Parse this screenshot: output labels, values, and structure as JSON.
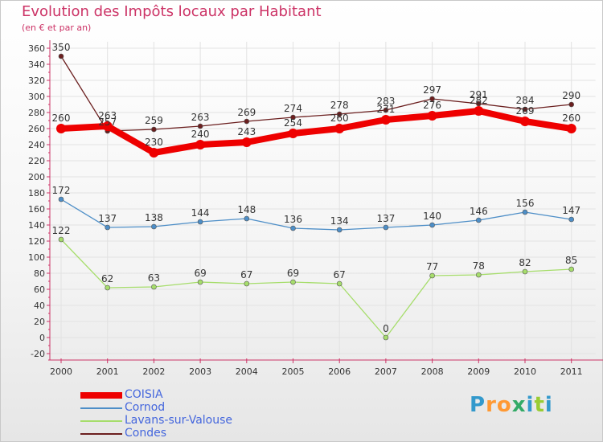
{
  "chart_data": {
    "type": "line",
    "title": "Evolution des Impôts locaux par Habitant",
    "subtitle": "(en € et par an)",
    "x": [
      "2000",
      "2001",
      "2002",
      "2003",
      "2004",
      "2005",
      "2006",
      "2007",
      "2008",
      "2009",
      "2010",
      "2011"
    ],
    "ylim": [
      -20,
      360
    ],
    "yticks": [
      -20,
      0,
      20,
      40,
      60,
      80,
      100,
      120,
      140,
      160,
      180,
      200,
      220,
      240,
      260,
      280,
      300,
      320,
      340,
      360
    ],
    "series": [
      {
        "name": "Condes",
        "color": "#6b1f1f",
        "values": [
          350,
          257,
          259,
          263,
          269,
          274,
          278,
          283,
          297,
          291,
          284,
          290
        ]
      },
      {
        "name": "Cornod",
        "color": "#4d8ec7",
        "values": [
          172,
          137,
          138,
          144,
          148,
          136,
          134,
          137,
          140,
          146,
          156,
          147
        ]
      },
      {
        "name": "Lavans-sur-Valouse",
        "color": "#a6dd6b",
        "values": [
          122,
          62,
          63,
          69,
          67,
          69,
          67,
          0,
          77,
          78,
          82,
          85
        ]
      },
      {
        "name": "COISIA",
        "color": "#ee0000",
        "values": [
          260,
          263,
          230,
          240,
          243,
          254,
          260,
          271,
          276,
          282,
          269,
          260
        ]
      }
    ],
    "data_labels": {
      "Condes": [
        "350",
        "257",
        "259",
        "263",
        "269",
        "274",
        "278",
        "283",
        "297",
        "291",
        "284",
        "290"
      ],
      "Cornod": [
        "172",
        "137",
        "138",
        "144",
        "148",
        "136",
        "134",
        "137",
        "140",
        "146",
        "156",
        "147"
      ],
      "Lavans-sur-Valouse": [
        "122",
        "62",
        "63",
        "69",
        "67",
        "69",
        "67",
        "0",
        "77",
        "78",
        "82",
        "85"
      ],
      "COISIA": [
        "260",
        "263",
        "230",
        "240",
        "243",
        "254",
        "260",
        "271",
        "276",
        "282",
        "269",
        "260"
      ]
    },
    "legend": [
      {
        "name": "COISIA",
        "color": "#ee0000"
      },
      {
        "name": "Cornod",
        "color": "#4d8ec7"
      },
      {
        "name": "Lavans-sur-Valouse",
        "color": "#a6dd6b"
      },
      {
        "name": "Condes",
        "color": "#6b1f1f"
      }
    ],
    "legend_position": "bottom-left",
    "grid": true
  },
  "logo": {
    "text": "Proxiti"
  }
}
